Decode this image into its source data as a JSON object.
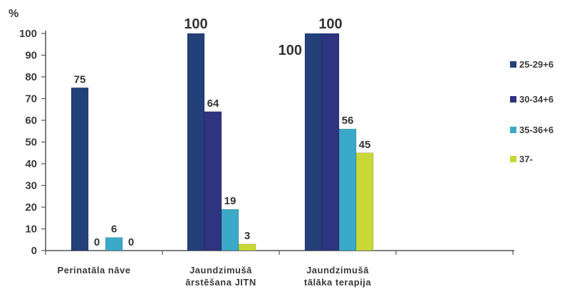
{
  "chart_data": {
    "type": "bar",
    "ylabel": "%",
    "ylim": [
      0,
      100
    ],
    "yticks": [
      0,
      10,
      20,
      30,
      40,
      50,
      60,
      70,
      80,
      90,
      100
    ],
    "categories": [
      [
        "Perinatāla nāve"
      ],
      [
        "Jaundzimušā",
        "ārstēšana JITN"
      ],
      [
        "Jaundzimušā",
        "tālāka terapija"
      ]
    ],
    "series": [
      {
        "name": "25-29+6",
        "color": "#24407a",
        "values": [
          75,
          100,
          100
        ]
      },
      {
        "name": "30-34+6",
        "color": "#2f3480",
        "values": [
          0,
          64,
          100
        ]
      },
      {
        "name": "35-36+6",
        "color": "#3aaac8",
        "values": [
          6,
          19,
          56
        ]
      },
      {
        "name": "37-",
        "color": "#c8d834",
        "values": [
          0,
          3,
          45
        ]
      }
    ],
    "data_labels": [
      [
        "75",
        "0",
        "6",
        "0"
      ],
      [
        "100",
        "64",
        "19",
        "3"
      ],
      [
        "100",
        "100",
        "56",
        "45"
      ]
    ],
    "legend_position": "right",
    "grid": false
  }
}
